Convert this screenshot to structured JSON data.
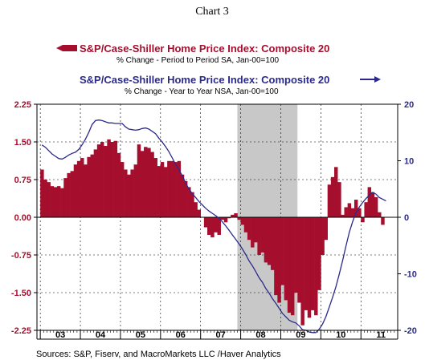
{
  "title": "Chart 3",
  "source": "Sources:  S&P, Fiserv, and MacroMarkets LLC /Haver Analytics",
  "colors": {
    "bar": "#a50f2d",
    "line": "#2b2a8c",
    "recession": "#c8c8c8",
    "grid": "#000000"
  },
  "legend": {
    "bar_title": "S&P/Case-Shiller Home Price Index: Composite 20",
    "bar_sub": "% Change - Period to Period   SA, Jan-00=100",
    "line_title": "S&P/Case-Shiller Home Price Index: Composite 20",
    "line_sub": "% Change - Year to Year   NSA, Jan-00=100"
  },
  "chart_data": {
    "type": "bar",
    "x_axis": {
      "labels": [
        "03",
        "04",
        "05",
        "06",
        "07",
        "08",
        "09",
        "10",
        "11"
      ],
      "range": [
        "2002-12",
        "2011-12"
      ]
    },
    "y_left": {
      "ticks": [
        "2.25",
        "1.50",
        "0.75",
        "0.00",
        "-0.75",
        "-1.50",
        "-2.25"
      ],
      "range": [
        -2.25,
        2.25
      ]
    },
    "y_right": {
      "ticks": [
        "20",
        "10",
        "0",
        "-10",
        "-20"
      ],
      "range": [
        -20,
        20
      ]
    },
    "grid": true,
    "recession_shading": {
      "start": "2007-12",
      "end": "2009-06"
    },
    "series": [
      {
        "name": "S&P/Case-Shiller Home Price Index: Composite 20 (% Change - Period to Period, SA)",
        "type": "bar",
        "axis": "left",
        "start": "2003-01",
        "values": [
          0.95,
          0.75,
          0.7,
          0.62,
          0.6,
          0.62,
          0.58,
          0.78,
          0.88,
          0.92,
          1.05,
          1.12,
          1.18,
          1.05,
          1.2,
          1.25,
          1.35,
          1.45,
          1.5,
          1.42,
          1.55,
          1.5,
          1.52,
          1.28,
          1.1,
          0.95,
          0.85,
          0.95,
          1.05,
          1.45,
          1.32,
          1.4,
          1.38,
          1.3,
          1.18,
          1.02,
          1.1,
          1.0,
          1.12,
          1.12,
          1.1,
          1.12,
          0.85,
          0.72,
          0.6,
          0.5,
          0.3,
          0.15,
          0.0,
          -0.2,
          -0.35,
          -0.4,
          -0.3,
          -0.35,
          -0.05,
          -0.1,
          -0.02,
          0.05,
          0.08,
          -0.05,
          -0.15,
          -0.3,
          -0.45,
          -0.6,
          -0.5,
          -0.75,
          -0.7,
          -0.9,
          -0.95,
          -1.05,
          -1.55,
          -1.7,
          -1.35,
          -1.65,
          -1.9,
          -1.95,
          -1.5,
          -1.7,
          -2.15,
          -1.85,
          -2.0,
          -1.85,
          -1.95,
          -1.45,
          -0.75,
          -0.45,
          0.65,
          0.8,
          1.0,
          0.7,
          0.05,
          0.2,
          0.28,
          0.18,
          0.35,
          0.18,
          -0.1,
          0.3,
          0.6,
          0.5,
          0.4,
          0.1,
          -0.15
        ],
        "color": "#a50f2d"
      },
      {
        "name": "S&P/Case-Shiller Home Price Index: Composite 20 (% Change - Year to Year, NSA)",
        "type": "line",
        "axis": "right",
        "start": "2003-01",
        "values": [
          12.8,
          12.4,
          11.8,
          11.2,
          10.8,
          10.4,
          10.3,
          10.6,
          11.0,
          11.3,
          11.5,
          12.0,
          12.8,
          13.8,
          15.0,
          16.4,
          17.1,
          17.2,
          17.1,
          16.9,
          16.7,
          16.7,
          16.6,
          16.6,
          16.6,
          16.0,
          15.6,
          15.5,
          15.4,
          15.5,
          15.7,
          15.8,
          15.6,
          15.2,
          14.8,
          14.0,
          13.3,
          12.5,
          11.6,
          10.5,
          9.4,
          8.4,
          7.4,
          6.1,
          5.0,
          4.2,
          3.5,
          2.8,
          2.2,
          1.6,
          1.1,
          0.7,
          0.3,
          -0.2,
          -0.8,
          -1.5,
          -2.3,
          -3.1,
          -3.9,
          -4.7,
          -5.6,
          -6.6,
          -7.7,
          -8.6,
          -9.6,
          -10.7,
          -11.5,
          -12.6,
          -13.4,
          -14.4,
          -15.2,
          -16.1,
          -17.0,
          -17.6,
          -18.2,
          -18.5,
          -18.7,
          -19.2,
          -19.9,
          -20.0,
          -20.3,
          -20.4,
          -20.4,
          -19.8,
          -18.9,
          -17.6,
          -15.9,
          -14.2,
          -12.3,
          -10.1,
          -7.7,
          -5.1,
          -2.7,
          -0.8,
          0.8,
          1.8,
          2.6,
          3.3,
          3.9,
          4.4,
          4.1,
          3.5,
          3.2,
          2.9
        ],
        "color": "#2b2a8c"
      }
    ]
  }
}
